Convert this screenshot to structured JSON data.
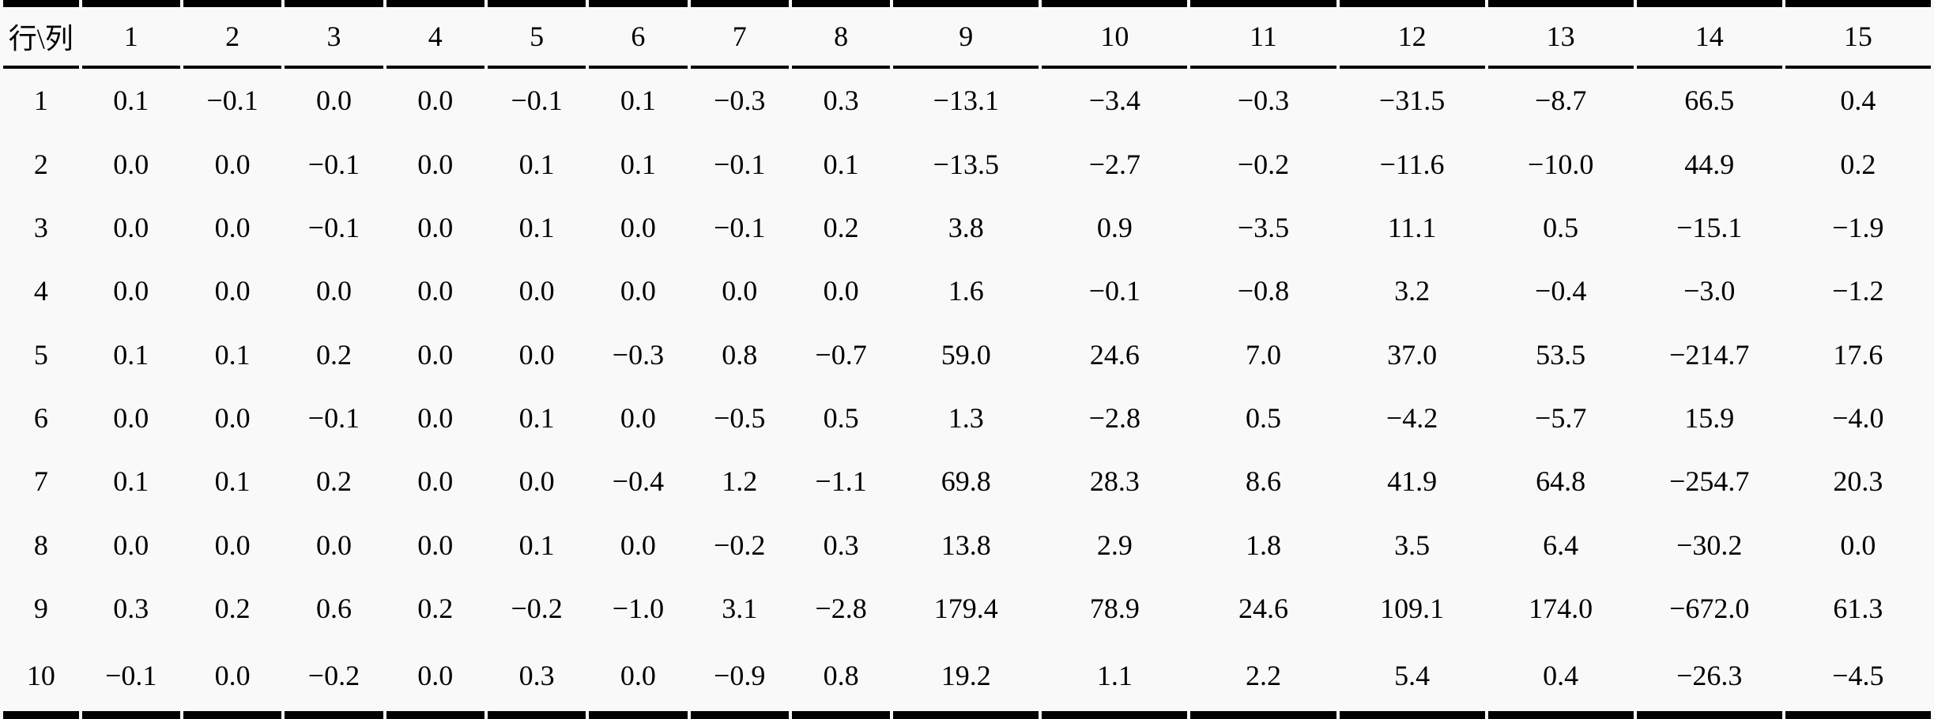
{
  "chart_data": {
    "type": "table",
    "corner_label": "行\\列",
    "columns": [
      "1",
      "2",
      "3",
      "4",
      "5",
      "6",
      "7",
      "8",
      "9",
      "10",
      "11",
      "12",
      "13",
      "14",
      "15"
    ],
    "rows": [
      {
        "label": "1",
        "values": [
          "0.1",
          "−0.1",
          "0.0",
          "0.0",
          "−0.1",
          "0.1",
          "−0.3",
          "0.3",
          "−13.1",
          "−3.4",
          "−0.3",
          "−31.5",
          "−8.7",
          "66.5",
          "0.4"
        ]
      },
      {
        "label": "2",
        "values": [
          "0.0",
          "0.0",
          "−0.1",
          "0.0",
          "0.1",
          "0.1",
          "−0.1",
          "0.1",
          "−13.5",
          "−2.7",
          "−0.2",
          "−11.6",
          "−10.0",
          "44.9",
          "0.2"
        ]
      },
      {
        "label": "3",
        "values": [
          "0.0",
          "0.0",
          "−0.1",
          "0.0",
          "0.1",
          "0.0",
          "−0.1",
          "0.2",
          "3.8",
          "0.9",
          "−3.5",
          "11.1",
          "0.5",
          "−15.1",
          "−1.9"
        ]
      },
      {
        "label": "4",
        "values": [
          "0.0",
          "0.0",
          "0.0",
          "0.0",
          "0.0",
          "0.0",
          "0.0",
          "0.0",
          "1.6",
          "−0.1",
          "−0.8",
          "3.2",
          "−0.4",
          "−3.0",
          "−1.2"
        ]
      },
      {
        "label": "5",
        "values": [
          "0.1",
          "0.1",
          "0.2",
          "0.0",
          "0.0",
          "−0.3",
          "0.8",
          "−0.7",
          "59.0",
          "24.6",
          "7.0",
          "37.0",
          "53.5",
          "−214.7",
          "17.6"
        ]
      },
      {
        "label": "6",
        "values": [
          "0.0",
          "0.0",
          "−0.1",
          "0.0",
          "0.1",
          "0.0",
          "−0.5",
          "0.5",
          "1.3",
          "−2.8",
          "0.5",
          "−4.2",
          "−5.7",
          "15.9",
          "−4.0"
        ]
      },
      {
        "label": "7",
        "values": [
          "0.1",
          "0.1",
          "0.2",
          "0.0",
          "0.0",
          "−0.4",
          "1.2",
          "−1.1",
          "69.8",
          "28.3",
          "8.6",
          "41.9",
          "64.8",
          "−254.7",
          "20.3"
        ]
      },
      {
        "label": "8",
        "values": [
          "0.0",
          "0.0",
          "0.0",
          "0.0",
          "0.1",
          "0.0",
          "−0.2",
          "0.3",
          "13.8",
          "2.9",
          "1.8",
          "3.5",
          "6.4",
          "−30.2",
          "0.0"
        ]
      },
      {
        "label": "9",
        "values": [
          "0.3",
          "0.2",
          "0.6",
          "0.2",
          "−0.2",
          "−1.0",
          "3.1",
          "−2.8",
          "179.4",
          "78.9",
          "24.6",
          "109.1",
          "174.0",
          "−672.0",
          "61.3"
        ]
      },
      {
        "label": "10",
        "values": [
          "−0.1",
          "0.0",
          "−0.2",
          "0.0",
          "0.3",
          "0.0",
          "−0.9",
          "0.8",
          "19.2",
          "1.1",
          "2.2",
          "5.4",
          "0.4",
          "−26.3",
          "−4.5"
        ]
      }
    ]
  }
}
